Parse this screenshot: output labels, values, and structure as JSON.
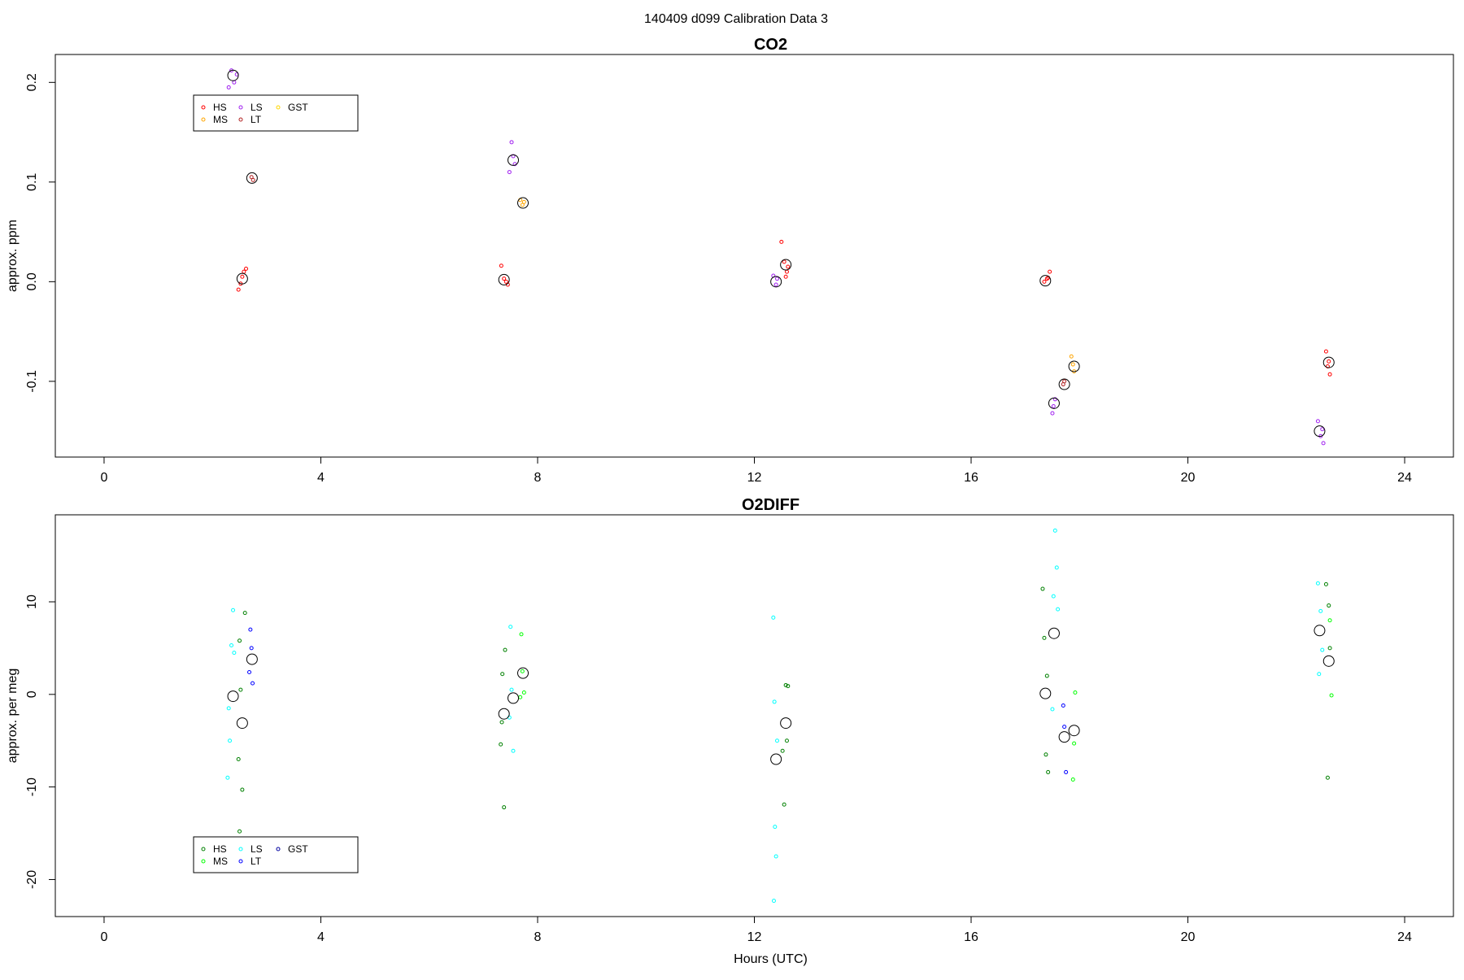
{
  "header": {
    "title": "140409   d099   Calibration Data 3"
  },
  "chart_data": [
    {
      "type": "scatter",
      "title": "CO2",
      "ylabel": "approx. ppm",
      "xlabel": "",
      "xlim": [
        -0.9,
        24.9
      ],
      "ylim": [
        -0.176,
        0.228
      ],
      "x_ticks": [
        0,
        4,
        8,
        12,
        16,
        20,
        24
      ],
      "y_ticks": [
        -0.1,
        0.0,
        0.1,
        0.2
      ],
      "y_tick_labels": [
        "-0.1",
        "0.0",
        "0.1",
        "0.2"
      ],
      "legend": {
        "position": "top-left",
        "entries": [
          "HS",
          "MS",
          "LS",
          "LT",
          "GST"
        ]
      },
      "series": [
        {
          "name": "HS",
          "color": "#ff0000",
          "marker": "circle",
          "x": [
            2.48,
            2.52,
            2.58,
            2.62,
            2.55,
            7.33,
            7.38,
            7.42,
            7.45,
            12.5,
            12.55,
            12.6,
            12.58,
            12.62,
            17.35,
            17.4,
            17.45,
            17.42,
            22.55,
            22.6,
            22.62,
            22.58
          ],
          "y": [
            -0.008,
            -0.002,
            0.01,
            0.013,
            0.005,
            0.016,
            0.003,
            0.0,
            -0.003,
            0.04,
            0.02,
            0.01,
            0.005,
            0.015,
            0.0,
            0.003,
            0.01,
            0.004,
            -0.07,
            -0.08,
            -0.093,
            -0.085
          ]
        },
        {
          "name": "MS",
          "color": "#ffa500",
          "marker": "circle",
          "x": [
            7.68,
            7.72,
            7.75,
            17.85,
            17.9,
            17.88
          ],
          "y": [
            0.082,
            0.077,
            0.08,
            -0.075,
            -0.09,
            -0.083
          ]
        },
        {
          "name": "LS",
          "color": "#a020f0",
          "marker": "circle",
          "x": [
            2.3,
            2.35,
            2.4,
            2.45,
            7.48,
            7.52,
            7.55,
            7.58,
            12.35,
            12.4,
            12.42,
            17.5,
            17.55,
            17.52,
            22.4,
            22.45,
            22.5,
            22.48
          ],
          "y": [
            0.195,
            0.212,
            0.2,
            0.208,
            0.11,
            0.14,
            0.126,
            0.118,
            0.006,
            -0.003,
            0.003,
            -0.132,
            -0.118,
            -0.125,
            -0.14,
            -0.155,
            -0.162,
            -0.148
          ]
        },
        {
          "name": "LT",
          "color": "#b22222",
          "marker": "circle",
          "x": [
            2.72,
            2.75,
            17.7,
            17.72
          ],
          "y": [
            0.105,
            0.102,
            -0.103,
            -0.1
          ]
        },
        {
          "name": "GST",
          "color": "#ffd700",
          "marker": "circle",
          "x": [],
          "y": []
        },
        {
          "name": "",
          "color": "#000000",
          "marker": "mean",
          "x": [
            2.38,
            2.55,
            2.73,
            7.38,
            7.55,
            7.73,
            12.4,
            12.58,
            17.37,
            17.53,
            17.72,
            17.9,
            22.43,
            22.6
          ],
          "y": [
            0.207,
            0.003,
            0.104,
            0.002,
            0.122,
            0.079,
            0.0,
            0.017,
            0.001,
            -0.122,
            -0.103,
            -0.085,
            -0.15,
            -0.081
          ]
        }
      ]
    },
    {
      "type": "scatter",
      "title": "O2DIFF",
      "ylabel": "approx. per meg",
      "xlabel": "Hours (UTC)",
      "xlim": [
        -0.9,
        24.9
      ],
      "ylim": [
        -24.0,
        19.4
      ],
      "x_ticks": [
        0,
        4,
        8,
        12,
        16,
        20,
        24
      ],
      "y_ticks": [
        -20,
        -10,
        0,
        10
      ],
      "y_tick_labels": [
        "-20",
        "-10",
        "0",
        "10"
      ],
      "legend": {
        "position": "bottom-left",
        "entries": [
          "HS",
          "MS",
          "LS",
          "LT",
          "GST"
        ]
      },
      "series": [
        {
          "name": "HS",
          "color": "#008000",
          "marker": "circle",
          "x": [
            2.5,
            2.55,
            2.48,
            2.52,
            2.6,
            2.5,
            7.38,
            7.32,
            7.35,
            7.4,
            7.34,
            12.55,
            12.6,
            12.58,
            12.52,
            12.62,
            17.32,
            17.35,
            17.4,
            17.38,
            17.42,
            22.55,
            22.6,
            22.62,
            22.58
          ],
          "y": [
            -14.8,
            -10.3,
            -7.0,
            0.5,
            8.8,
            5.8,
            -12.2,
            -5.4,
            2.2,
            4.8,
            -3.0,
            -11.9,
            -5.0,
            1.0,
            -6.1,
            0.9,
            11.4,
            6.1,
            2.0,
            -6.5,
            -8.4,
            11.9,
            9.6,
            5.0,
            -9.0
          ]
        },
        {
          "name": "MS",
          "color": "#00ff00",
          "marker": "circle",
          "x": [
            7.7,
            7.72,
            7.75,
            7.68,
            17.88,
            17.9,
            17.92,
            22.62,
            22.65
          ],
          "y": [
            6.5,
            2.5,
            0.2,
            -0.3,
            -9.2,
            -5.3,
            0.2,
            8.0,
            -0.1
          ]
        },
        {
          "name": "LS",
          "color": "#00ffff",
          "marker": "circle",
          "x": [
            2.28,
            2.32,
            2.35,
            2.38,
            2.3,
            2.4,
            7.5,
            7.55,
            7.52,
            7.48,
            12.35,
            12.38,
            12.4,
            12.36,
            12.42,
            12.37,
            17.55,
            17.58,
            17.52,
            17.6,
            17.5,
            22.4,
            22.45,
            22.48,
            22.42
          ],
          "y": [
            -9.0,
            -5.0,
            5.3,
            9.1,
            -1.5,
            4.5,
            7.3,
            -6.1,
            0.5,
            -2.5,
            8.3,
            -14.3,
            -17.5,
            -22.3,
            -5.0,
            -0.8,
            17.7,
            13.7,
            10.6,
            9.2,
            -1.6,
            12.0,
            9.0,
            4.8,
            2.2
          ]
        },
        {
          "name": "LT",
          "color": "#0000ff",
          "marker": "circle",
          "x": [
            2.7,
            2.72,
            2.68,
            2.74,
            17.7,
            17.72,
            17.75
          ],
          "y": [
            7.0,
            5.0,
            2.4,
            1.2,
            -1.2,
            -3.5,
            -8.4
          ]
        },
        {
          "name": "GST",
          "color": "#0000a0",
          "marker": "circle",
          "x": [],
          "y": []
        },
        {
          "name": "",
          "color": "#000000",
          "marker": "mean",
          "x": [
            2.38,
            2.55,
            2.73,
            7.38,
            7.55,
            7.73,
            12.4,
            12.58,
            17.37,
            17.53,
            17.72,
            17.9,
            22.43,
            22.6
          ],
          "y": [
            -0.2,
            -3.1,
            3.8,
            -2.1,
            -0.4,
            2.3,
            -7.0,
            -3.1,
            0.1,
            6.6,
            -4.6,
            -3.9,
            6.9,
            3.6
          ]
        }
      ]
    }
  ]
}
